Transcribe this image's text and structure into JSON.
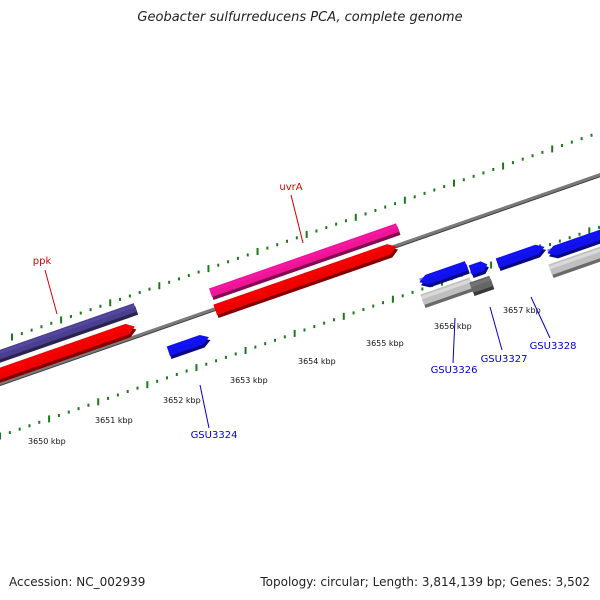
{
  "title": "Geobacter sulfurreducens PCA, complete genome",
  "footer": {
    "accession": "Accession: NC_002939",
    "summary": "Topology: circular; Length: 3,814,139 bp; Genes: 3,502"
  },
  "colors": {
    "backbone": "#7a7a7a",
    "ruler": "#1a7a1a",
    "label_red": "#dd0000",
    "label_blue": "#0000cc",
    "cds_red": "#ee0000",
    "cds_blue": "#1111ee",
    "ppk_feature": "#4a3f8f",
    "uvrA_feature": "#ee1493",
    "grey_feature": "#bfbfbf",
    "dark_grey_feature": "#666666"
  },
  "ruler_labels": [
    "3650 kbp",
    "3651 kbp",
    "3652 kbp",
    "3653 kbp",
    "3654 kbp",
    "3655 kbp",
    "3656 kbp",
    "3657 kbp"
  ],
  "gene_labels": [
    {
      "id": "ppk",
      "text": "ppk",
      "color": "label_red"
    },
    {
      "id": "uvrA",
      "text": "uvrA",
      "color": "label_red"
    },
    {
      "id": "GSU3324",
      "text": "GSU3324",
      "color": "label_blue"
    },
    {
      "id": "GSU3326",
      "text": "GSU3326",
      "color": "label_blue"
    },
    {
      "id": "GSU3327",
      "text": "GSU3327",
      "color": "label_blue"
    },
    {
      "id": "GSU3328",
      "text": "GSU3328",
      "color": "label_blue"
    }
  ]
}
